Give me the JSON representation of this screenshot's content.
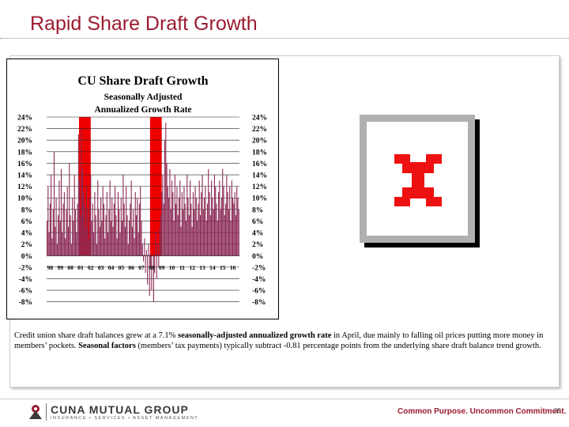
{
  "slide": {
    "title": "Rapid Share Draft Growth",
    "page_number": "35",
    "tagline": "Common Purpose. Uncommon Commitment."
  },
  "logo": {
    "main": "CUNA MUTUAL GROUP",
    "sub": "INSURANCE • SERVICES • ASSET MANAGEMENT"
  },
  "caption": {
    "part1": "Credit union share draft balances grew at a 7.1% ",
    "bold1": "seasonally-adjusted annualized growth rate",
    "part2": " in April, due mainly to falling oil prices putting more money in members’ pockets. ",
    "bold2": "Seasonal factors",
    "part3": " (members’ tax payments) typically subtract -0.81 percentage points from the underlying share draft balance trend growth."
  },
  "chart_data": {
    "type": "bar",
    "title": "CU Share Draft Growth",
    "subtitle_line1": "Seasonally Adjusted",
    "subtitle_line2": "Annualized Growth Rate",
    "xlabel": "",
    "ylabel": "",
    "ylim": [
      -9,
      24
    ],
    "yticks": [
      "24%",
      "22%",
      "20%",
      "18%",
      "16%",
      "14%",
      "12%",
      "10%",
      "8%",
      "6%",
      "4%",
      "2%",
      "0%",
      "-2%",
      "-4%",
      "-6%",
      "-8%"
    ],
    "ytick_values": [
      24,
      22,
      20,
      18,
      16,
      14,
      12,
      10,
      8,
      6,
      4,
      2,
      0,
      -2,
      -4,
      -6,
      -8
    ],
    "xticks": [
      "98",
      "99",
      "00",
      "01",
      "02",
      "03",
      "04",
      "05",
      "06",
      "07",
      "08",
      "09",
      "10",
      "11",
      "12",
      "13",
      "14",
      "15",
      "16"
    ],
    "grid": true,
    "bar_color": "#8b2a55",
    "highlight_color": "#ee0000",
    "highlight_spans": [
      [
        "01",
        "02"
      ],
      [
        "08",
        "09"
      ]
    ],
    "start_year": 1998,
    "end_year": 2016,
    "values": [
      6,
      12,
      4,
      9,
      14,
      3,
      8,
      18,
      5,
      10,
      2,
      7,
      13,
      6,
      15,
      4,
      9,
      11,
      3,
      8,
      12,
      5,
      16,
      7,
      2,
      10,
      6,
      14,
      8,
      4,
      9,
      21,
      13,
      7,
      22,
      15,
      11,
      9,
      5,
      12,
      8,
      3,
      10,
      14,
      6,
      9,
      4,
      11,
      7,
      2,
      13,
      8,
      5,
      10,
      6,
      12,
      9,
      3,
      7,
      11,
      4,
      8,
      13,
      6,
      10,
      5,
      9,
      12,
      7,
      3,
      11,
      8,
      4,
      10,
      6,
      14,
      9,
      5,
      12,
      7,
      2,
      6,
      9,
      13,
      5,
      8,
      3,
      11,
      7,
      10,
      4,
      9,
      12,
      6,
      2,
      -1,
      3,
      -3,
      1,
      -5,
      2,
      -7,
      -2,
      -6,
      0,
      -8,
      -3,
      4,
      -4,
      2,
      -2,
      5,
      7,
      11,
      14,
      9,
      20,
      23,
      16,
      12,
      10,
      15,
      8,
      13,
      11,
      6,
      14,
      9,
      12,
      7,
      10,
      13,
      5,
      11,
      8,
      12,
      9,
      6,
      14,
      10,
      7,
      13,
      9,
      5,
      11,
      8,
      12,
      10,
      6,
      9,
      13,
      7,
      11,
      14,
      8,
      10,
      12,
      6,
      9,
      15,
      11,
      7,
      13,
      10,
      8,
      14,
      12,
      9,
      6,
      11,
      13,
      8,
      10,
      15,
      12,
      7,
      9,
      14,
      11,
      8,
      12,
      6,
      13,
      10,
      9,
      11,
      7,
      12,
      10,
      8
    ]
  }
}
